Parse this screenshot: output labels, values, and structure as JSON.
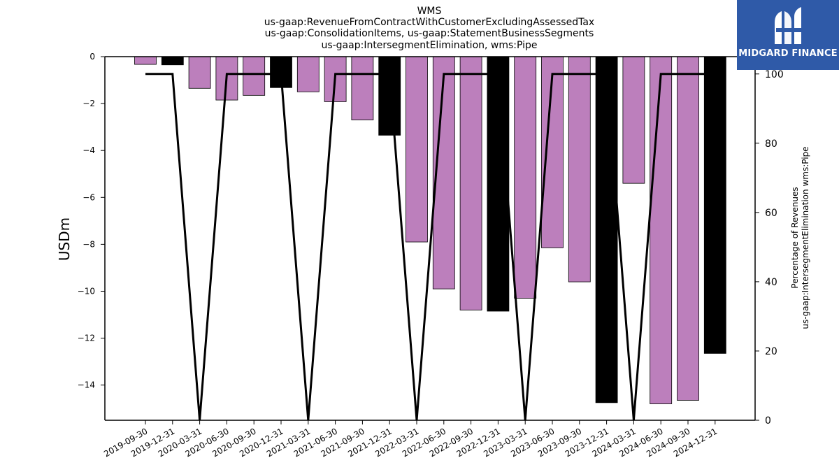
{
  "chart_data": {
    "type": "bar",
    "title_lines": [
      "WMS",
      "us-gaap:RevenueFromContractWithCustomerExcludingAssessedTax",
      "us-gaap:ConsolidationItems, us-gaap:StatementBusinessSegments",
      "us-gaap:IntersegmentElimination, wms:Pipe"
    ],
    "ylabel": "USDm",
    "y2label_lines": [
      "Percentage of Revenues",
      "us-gaap:IntersegmentElimination wms:Pipe"
    ],
    "categories": [
      "2019-09-30",
      "2019-12-31",
      "2020-03-31",
      "2020-06-30",
      "2020-09-30",
      "2020-12-31",
      "2021-03-31",
      "2021-06-30",
      "2021-09-30",
      "2021-12-31",
      "2022-03-31",
      "2022-06-30",
      "2022-09-30",
      "2022-12-31",
      "2023-03-31",
      "2023-06-30",
      "2023-09-30",
      "2023-12-31",
      "2024-03-31",
      "2024-06-30",
      "2024-09-30",
      "2024-12-31"
    ],
    "bar_values": [
      -0.33,
      -0.35,
      -1.35,
      -1.85,
      -1.65,
      -1.32,
      -1.5,
      -1.92,
      -2.7,
      -3.35,
      -7.9,
      -9.9,
      -10.8,
      -10.85,
      -10.3,
      -8.15,
      -9.6,
      -14.75,
      -5.4,
      -14.8,
      -14.65,
      -12.65
    ],
    "bar_colors": [
      "#bc7fbc",
      "#000000",
      "#bc7fbc",
      "#bc7fbc",
      "#bc7fbc",
      "#000000",
      "#bc7fbc",
      "#bc7fbc",
      "#bc7fbc",
      "#000000",
      "#bc7fbc",
      "#bc7fbc",
      "#bc7fbc",
      "#000000",
      "#bc7fbc",
      "#bc7fbc",
      "#bc7fbc",
      "#000000",
      "#bc7fbc",
      "#bc7fbc",
      "#bc7fbc",
      "#000000"
    ],
    "line_values": [
      100,
      100,
      0,
      100,
      100,
      100,
      0,
      100,
      100,
      100,
      0,
      100,
      100,
      100,
      0,
      100,
      100,
      100,
      0,
      100,
      100,
      100
    ],
    "ylim": [
      -15.5,
      0
    ],
    "y2lim": [
      0,
      105
    ],
    "yticks": [
      0,
      -2,
      -4,
      -6,
      -8,
      -10,
      -12,
      -14
    ],
    "y2ticks": [
      0,
      20,
      40,
      60,
      80,
      100
    ]
  },
  "branding": {
    "logo_text": "MIDGARD FINANCE",
    "colors": {
      "logo_bg": "#2f5aa8",
      "accent_bar": "#bc7fbc",
      "year_end_bar": "#000000"
    }
  }
}
